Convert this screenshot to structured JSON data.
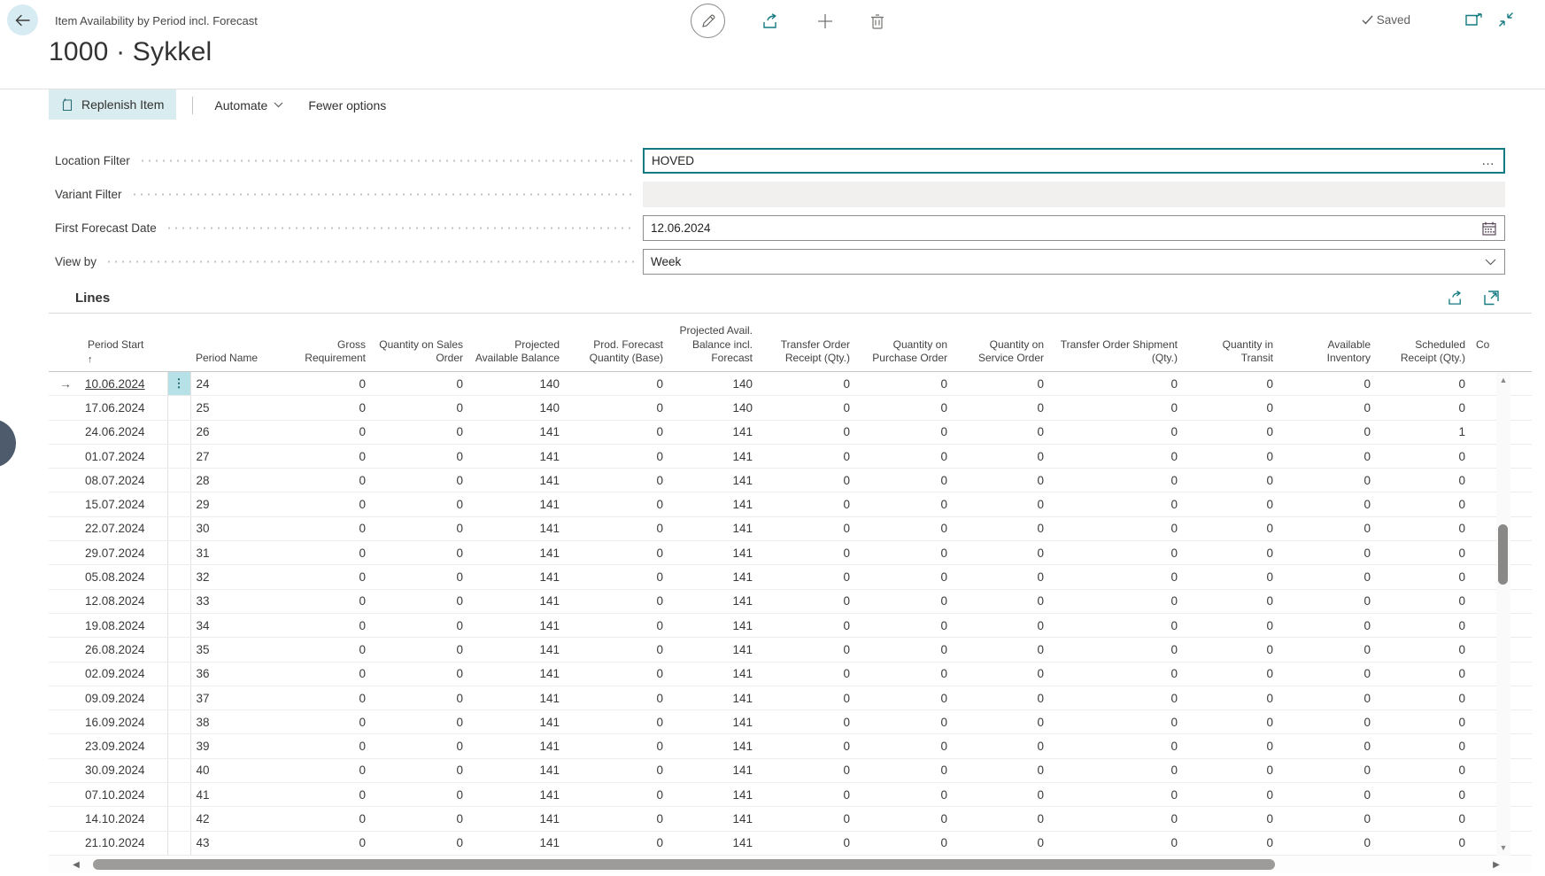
{
  "header": {
    "caption": "Item Availability by Period incl. Forecast",
    "title": "1000 · Sykkel",
    "saved_label": "Saved"
  },
  "action_bar": {
    "replenish_label": "Replenish Item",
    "automate_label": "Automate",
    "fewer_options_label": "Fewer options"
  },
  "filters": {
    "location": {
      "label": "Location Filter",
      "value": "HOVED"
    },
    "variant": {
      "label": "Variant Filter",
      "value": ""
    },
    "first_forecast_date": {
      "label": "First Forecast Date",
      "value": "12.06.2024"
    },
    "view_by": {
      "label": "View by",
      "value": "Week"
    }
  },
  "lines": {
    "title": "Lines",
    "sort_indicator": "↑",
    "row_pointer": "→",
    "row_menu_glyph": "⋮",
    "columns": [
      "Period Start",
      "Period Name",
      "Gross Requirement",
      "Quantity on Sales Order",
      "Projected Available Balance",
      "Prod. Forecast Quantity (Base)",
      "Projected Avail. Balance incl. Forecast",
      "Transfer Order Receipt (Qty.)",
      "Quantity on Purchase Order",
      "Quantity on Service Order",
      "Transfer Order Shipment (Qty.)",
      "Quantity in Transit",
      "Available Inventory",
      "Scheduled Receipt (Qty.)"
    ],
    "truncated_column_label": "Co",
    "rows": [
      {
        "period_start": "10.06.2024",
        "period_name": "24",
        "selected": true,
        "values": [
          0,
          0,
          140,
          0,
          140,
          0,
          0,
          0,
          0,
          0,
          0,
          0
        ]
      },
      {
        "period_start": "17.06.2024",
        "period_name": "25",
        "selected": false,
        "values": [
          0,
          0,
          140,
          0,
          140,
          0,
          0,
          0,
          0,
          0,
          0,
          0
        ]
      },
      {
        "period_start": "24.06.2024",
        "period_name": "26",
        "selected": false,
        "values": [
          0,
          0,
          141,
          0,
          141,
          0,
          0,
          0,
          0,
          0,
          0,
          1
        ]
      },
      {
        "period_start": "01.07.2024",
        "period_name": "27",
        "selected": false,
        "values": [
          0,
          0,
          141,
          0,
          141,
          0,
          0,
          0,
          0,
          0,
          0,
          0
        ]
      },
      {
        "period_start": "08.07.2024",
        "period_name": "28",
        "selected": false,
        "values": [
          0,
          0,
          141,
          0,
          141,
          0,
          0,
          0,
          0,
          0,
          0,
          0
        ]
      },
      {
        "period_start": "15.07.2024",
        "period_name": "29",
        "selected": false,
        "values": [
          0,
          0,
          141,
          0,
          141,
          0,
          0,
          0,
          0,
          0,
          0,
          0
        ]
      },
      {
        "period_start": "22.07.2024",
        "period_name": "30",
        "selected": false,
        "values": [
          0,
          0,
          141,
          0,
          141,
          0,
          0,
          0,
          0,
          0,
          0,
          0
        ]
      },
      {
        "period_start": "29.07.2024",
        "period_name": "31",
        "selected": false,
        "values": [
          0,
          0,
          141,
          0,
          141,
          0,
          0,
          0,
          0,
          0,
          0,
          0
        ]
      },
      {
        "period_start": "05.08.2024",
        "period_name": "32",
        "selected": false,
        "values": [
          0,
          0,
          141,
          0,
          141,
          0,
          0,
          0,
          0,
          0,
          0,
          0
        ]
      },
      {
        "period_start": "12.08.2024",
        "period_name": "33",
        "selected": false,
        "values": [
          0,
          0,
          141,
          0,
          141,
          0,
          0,
          0,
          0,
          0,
          0,
          0
        ]
      },
      {
        "period_start": "19.08.2024",
        "period_name": "34",
        "selected": false,
        "values": [
          0,
          0,
          141,
          0,
          141,
          0,
          0,
          0,
          0,
          0,
          0,
          0
        ]
      },
      {
        "period_start": "26.08.2024",
        "period_name": "35",
        "selected": false,
        "values": [
          0,
          0,
          141,
          0,
          141,
          0,
          0,
          0,
          0,
          0,
          0,
          0
        ]
      },
      {
        "period_start": "02.09.2024",
        "period_name": "36",
        "selected": false,
        "values": [
          0,
          0,
          141,
          0,
          141,
          0,
          0,
          0,
          0,
          0,
          0,
          0
        ]
      },
      {
        "period_start": "09.09.2024",
        "period_name": "37",
        "selected": false,
        "values": [
          0,
          0,
          141,
          0,
          141,
          0,
          0,
          0,
          0,
          0,
          0,
          0
        ]
      },
      {
        "period_start": "16.09.2024",
        "period_name": "38",
        "selected": false,
        "values": [
          0,
          0,
          141,
          0,
          141,
          0,
          0,
          0,
          0,
          0,
          0,
          0
        ]
      },
      {
        "period_start": "23.09.2024",
        "period_name": "39",
        "selected": false,
        "values": [
          0,
          0,
          141,
          0,
          141,
          0,
          0,
          0,
          0,
          0,
          0,
          0
        ]
      },
      {
        "period_start": "30.09.2024",
        "period_name": "40",
        "selected": false,
        "values": [
          0,
          0,
          141,
          0,
          141,
          0,
          0,
          0,
          0,
          0,
          0,
          0
        ]
      },
      {
        "period_start": "07.10.2024",
        "period_name": "41",
        "selected": false,
        "values": [
          0,
          0,
          141,
          0,
          141,
          0,
          0,
          0,
          0,
          0,
          0,
          0
        ]
      },
      {
        "period_start": "14.10.2024",
        "period_name": "42",
        "selected": false,
        "values": [
          0,
          0,
          141,
          0,
          141,
          0,
          0,
          0,
          0,
          0,
          0,
          0
        ]
      },
      {
        "period_start": "21.10.2024",
        "period_name": "43",
        "selected": false,
        "values": [
          0,
          0,
          141,
          0,
          141,
          0,
          0,
          0,
          0,
          0,
          0,
          0
        ]
      }
    ]
  },
  "icons": {
    "back-icon": "left arrow in light circle",
    "edit-icon": "pencil in circle",
    "share-icon": "arrow leaving tray (teal)",
    "add-icon": "plus",
    "delete-icon": "trash can",
    "saved-check-icon": "check mark",
    "popout-icon": "window with outward arrow (teal)",
    "collapse-icon": "two arrows pointing inward (teal)",
    "replenish-sparkle-page-icon": "page with sparkle (teal)",
    "chevron-down-icon": "v chevron",
    "lookup-ellipsis-icon": "…",
    "calendar-icon": "calendar grid",
    "expand-grid-icon": "square with corner arrow (teal)",
    "sort-ascending-icon": "↑",
    "row-pointer-icon": "→",
    "row-menu-icon": "⋮",
    "scroll-arrows": "▲ ▼ ◀ ▶"
  },
  "colors": {
    "accent_teal": "#147a82",
    "button_bg": "#d9ecef",
    "selection_bg": "#b6e1e7",
    "back_circle_bg": "#d7ecf2",
    "text_primary": "#3b3a39",
    "text_secondary": "#605e5c",
    "row_line": "#ededed",
    "edge_widget": "#4e5b6c"
  }
}
